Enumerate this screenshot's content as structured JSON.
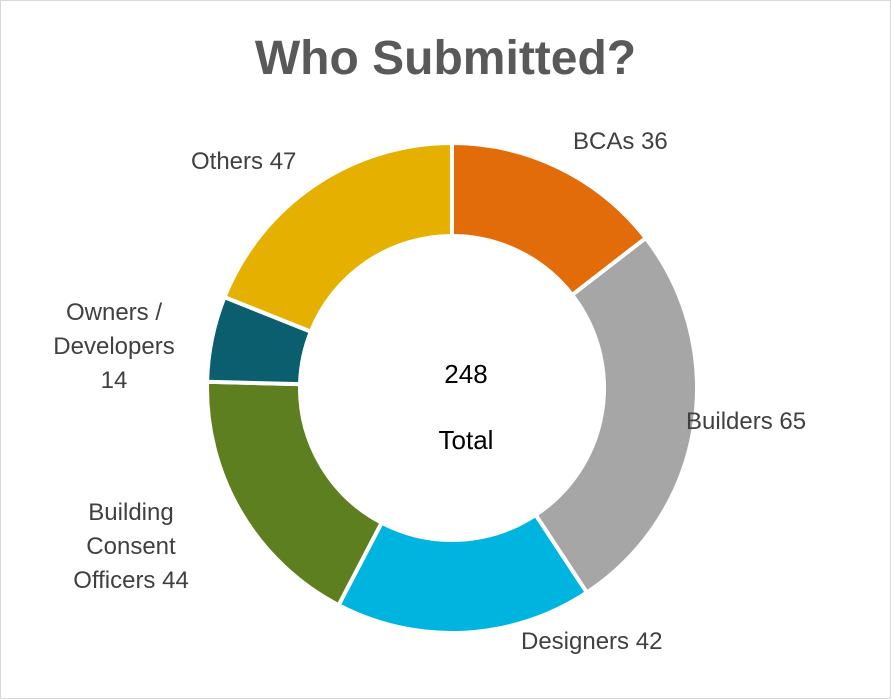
{
  "chart_data": {
    "type": "pie",
    "subtype": "donut",
    "title": "Who Submitted?",
    "center_value": "248",
    "center_label": "Total",
    "slices": [
      {
        "name": "BCAs",
        "value": 36,
        "label": "BCAs 36",
        "color": "#E36C0A"
      },
      {
        "name": "Builders",
        "value": 65,
        "label": "Builders 65",
        "color": "#A6A6A6"
      },
      {
        "name": "Designers",
        "value": 42,
        "label": "Designers 42",
        "color": "#00B4E0"
      },
      {
        "name": "Building Consent Officers",
        "value": 44,
        "label": "Building\nConsent\nOfficers 44",
        "color": "#5E7F1F"
      },
      {
        "name": "Owners / Developers",
        "value": 14,
        "label": "Owners /\nDevelopers\n14",
        "color": "#0B5E6E"
      },
      {
        "name": "Others",
        "value": 47,
        "label": "Others 47",
        "color": "#E6B000"
      }
    ],
    "legend": "none"
  }
}
